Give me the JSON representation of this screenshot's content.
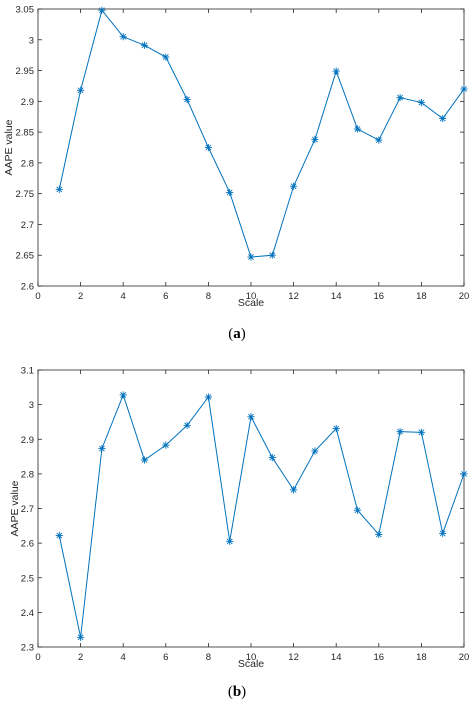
{
  "chart_data": [
    {
      "type": "line",
      "caption_open": "(",
      "caption_letter": "a",
      "caption_close": ")",
      "xlabel": "Scale",
      "ylabel": "AAPE value",
      "xlim": [
        0,
        20
      ],
      "ylim": [
        2.6,
        3.05
      ],
      "xticks": [
        "0",
        "2",
        "4",
        "6",
        "8",
        "10",
        "12",
        "14",
        "16",
        "18",
        "20"
      ],
      "yticks": [
        "2.6",
        "2.65",
        "2.7",
        "2.75",
        "2.8",
        "2.85",
        "2.9",
        "2.95",
        "3",
        "3.05"
      ],
      "grid": false,
      "marker": "asterisk",
      "color": "#0072bd",
      "x": [
        1,
        2,
        3,
        4,
        5,
        6,
        7,
        8,
        9,
        10,
        11,
        12,
        13,
        14,
        15,
        16,
        17,
        18,
        19,
        20
      ],
      "y": [
        2.757,
        2.918,
        3.048,
        3.005,
        2.991,
        2.972,
        2.903,
        2.825,
        2.752,
        2.647,
        2.65,
        2.762,
        2.838,
        2.949,
        2.855,
        2.837,
        2.906,
        2.898,
        2.872,
        2.92
      ]
    },
    {
      "type": "line",
      "caption_open": "(",
      "caption_letter": "b",
      "caption_close": ")",
      "xlabel": "Scale",
      "ylabel": "AAPE value",
      "xlim": [
        0,
        20
      ],
      "ylim": [
        2.3,
        3.1
      ],
      "xticks": [
        "0",
        "2",
        "4",
        "6",
        "8",
        "10",
        "12",
        "14",
        "16",
        "18",
        "20"
      ],
      "yticks": [
        "2.3",
        "2.4",
        "2.5",
        "2.6",
        "2.7",
        "2.8",
        "2.9",
        "3",
        "3.1"
      ],
      "grid": false,
      "marker": "asterisk",
      "color": "#0072bd",
      "x": [
        1,
        2,
        3,
        4,
        5,
        6,
        7,
        8,
        9,
        10,
        11,
        12,
        13,
        14,
        15,
        16,
        17,
        18,
        19,
        20
      ],
      "y": [
        2.622,
        2.328,
        2.873,
        3.028,
        2.84,
        2.883,
        2.94,
        3.022,
        2.605,
        2.965,
        2.847,
        2.754,
        2.866,
        2.931,
        2.695,
        2.625,
        2.922,
        2.92,
        2.628,
        2.8
      ]
    }
  ]
}
